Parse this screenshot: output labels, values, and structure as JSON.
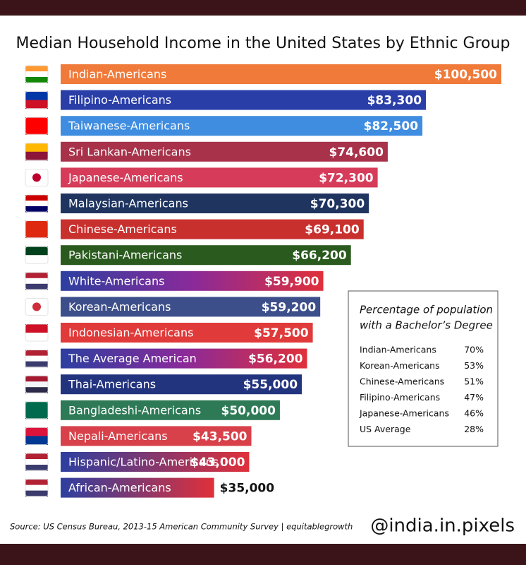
{
  "chart_data": {
    "type": "hbar",
    "title": "Median Household Income in the United States  by Ethnic Group",
    "categories": [
      "Indian-Americans",
      "Filipino-Americans",
      "Taiwanese-Americans",
      "Sri Lankan-Americans",
      "Japanese-Americans",
      "Malaysian-Americans",
      "Chinese-Americans",
      "Pakistani-Americans",
      "White-Americans",
      "Korean-Americans",
      "Indonesian-Americans",
      "The Average American",
      "Thai-Americans",
      "Bangladeshi-Americans",
      "Nepali-Americans",
      "Hispanic/Latino-Americans",
      "African-Americans"
    ],
    "values": [
      100500,
      83300,
      82500,
      74600,
      72300,
      70300,
      69100,
      66200,
      59900,
      59200,
      57500,
      56200,
      55000,
      50000,
      43500,
      43000,
      35000
    ],
    "value_labels": [
      "$100,500",
      "$83,300",
      "$82,500",
      "$74,600",
      "$72,300",
      "$70,300",
      "$69,100",
      "$66,200",
      "$59,900",
      "$59,200",
      "$57,500",
      "$56,200",
      "$55,000",
      "$50,000",
      "$43,500",
      "$43,000",
      "$35,000"
    ],
    "colors": [
      "#f07a3a",
      "#2a3ea8",
      "#3f8de0",
      "#a8324a",
      "#d63c5a",
      "#1f3560",
      "#c8302e",
      "#2a5a1e",
      [
        "#2c3fa0",
        "#8a2a9a",
        "#e0303a"
      ],
      "#3d4f8a",
      "#e03a3a",
      [
        "#2c3fa0",
        "#8a2a9a",
        "#e0303a"
      ],
      "#23347f",
      "#2e7a56",
      "#d8414a",
      [
        "#2c3fa0",
        "#e0303a"
      ],
      [
        "#2c3fa0",
        "#e0303a"
      ]
    ],
    "inset": {
      "title": [
        "Percentage of population",
        "with a Bachelor’s Degree"
      ],
      "rows": [
        {
          "label": "Indian-Americans",
          "value": "70%"
        },
        {
          "label": "Korean-Americans",
          "value": "53%"
        },
        {
          "label": "Chinese-Americans",
          "value": "51%"
        },
        {
          "label": "Filipino-Americans",
          "value": "47%"
        },
        {
          "label": "Japanese-Americans",
          "value": "46%"
        },
        {
          "label": "US Average",
          "value": "28%"
        }
      ]
    },
    "source": "Source: US Census Bureau, 2013-15 American Community Survey | equitablegrowth",
    "handle": "@india.in.pixels"
  }
}
